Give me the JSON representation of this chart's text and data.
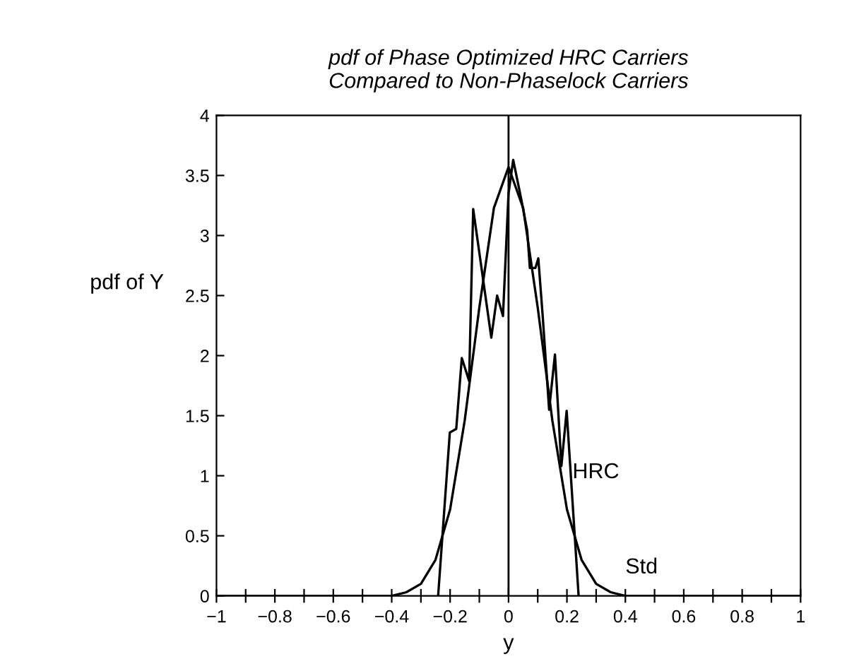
{
  "chart_data": {
    "type": "line",
    "title": "pdf of Phase Optimized HRC Carriers\nCompared to Non-Phaselock Carriers",
    "xlabel": "y",
    "ylabel": "pdf of Y",
    "series": [
      {
        "name": "HRC",
        "color": "#000000",
        "x": [
          -0.241,
          -0.201,
          -0.179,
          -0.16,
          -0.135,
          -0.121,
          -0.059,
          -0.039,
          -0.019,
          0,
          0.016,
          0.043,
          0.064,
          0.073,
          0.092,
          0.102,
          0.117,
          0.139,
          0.159,
          0.181,
          0.199,
          0.24
        ],
        "values": [
          0,
          1.36,
          1.39,
          1.98,
          1.79,
          3.22,
          2.15,
          2.5,
          2.33,
          3.35,
          3.63,
          3.31,
          3.04,
          2.73,
          2.73,
          2.81,
          2.33,
          1.55,
          2.01,
          1.08,
          1.54,
          0
        ]
      },
      {
        "name": "Std",
        "color": "#000000",
        "x": [
          -1,
          -0.4,
          -0.35,
          -0.3,
          -0.25,
          -0.2,
          -0.15,
          -0.1,
          -0.05,
          0,
          0.05,
          0.1,
          0.15,
          0.2,
          0.25,
          0.3,
          0.35,
          0.4,
          1
        ],
        "values": [
          0,
          0,
          0.03,
          0.1,
          0.3,
          0.72,
          1.46,
          2.4,
          3.23,
          3.57,
          3.23,
          2.4,
          1.46,
          0.72,
          0.3,
          0.1,
          0.03,
          0,
          0
        ]
      }
    ],
    "ref_lines": [
      {
        "axis": "x",
        "value": 0,
        "color": "#000000"
      }
    ],
    "xlim": [
      -1,
      1
    ],
    "ylim": [
      0,
      4
    ],
    "xticks": [
      -1,
      {
        "value": -0.9,
        "label": null
      },
      -0.8,
      {
        "value": -0.7,
        "label": null
      },
      -0.6,
      {
        "value": -0.5,
        "label": null
      },
      -0.4,
      {
        "value": -0.3,
        "label": null
      },
      -0.2,
      {
        "value": -0.1,
        "label": null
      },
      0,
      {
        "value": 0.1,
        "label": null
      },
      0.2,
      {
        "value": 0.3,
        "label": null
      },
      0.4,
      {
        "value": 0.5,
        "label": null
      },
      0.6,
      {
        "value": 0.7,
        "label": null
      },
      0.8,
      {
        "value": 0.9,
        "label": null
      },
      1
    ],
    "yticks": [
      0,
      0.5,
      1,
      1.5,
      2,
      2.5,
      3,
      3.5,
      4
    ],
    "grid": false,
    "legend": false,
    "marker": "none",
    "line_style": "solid"
  }
}
